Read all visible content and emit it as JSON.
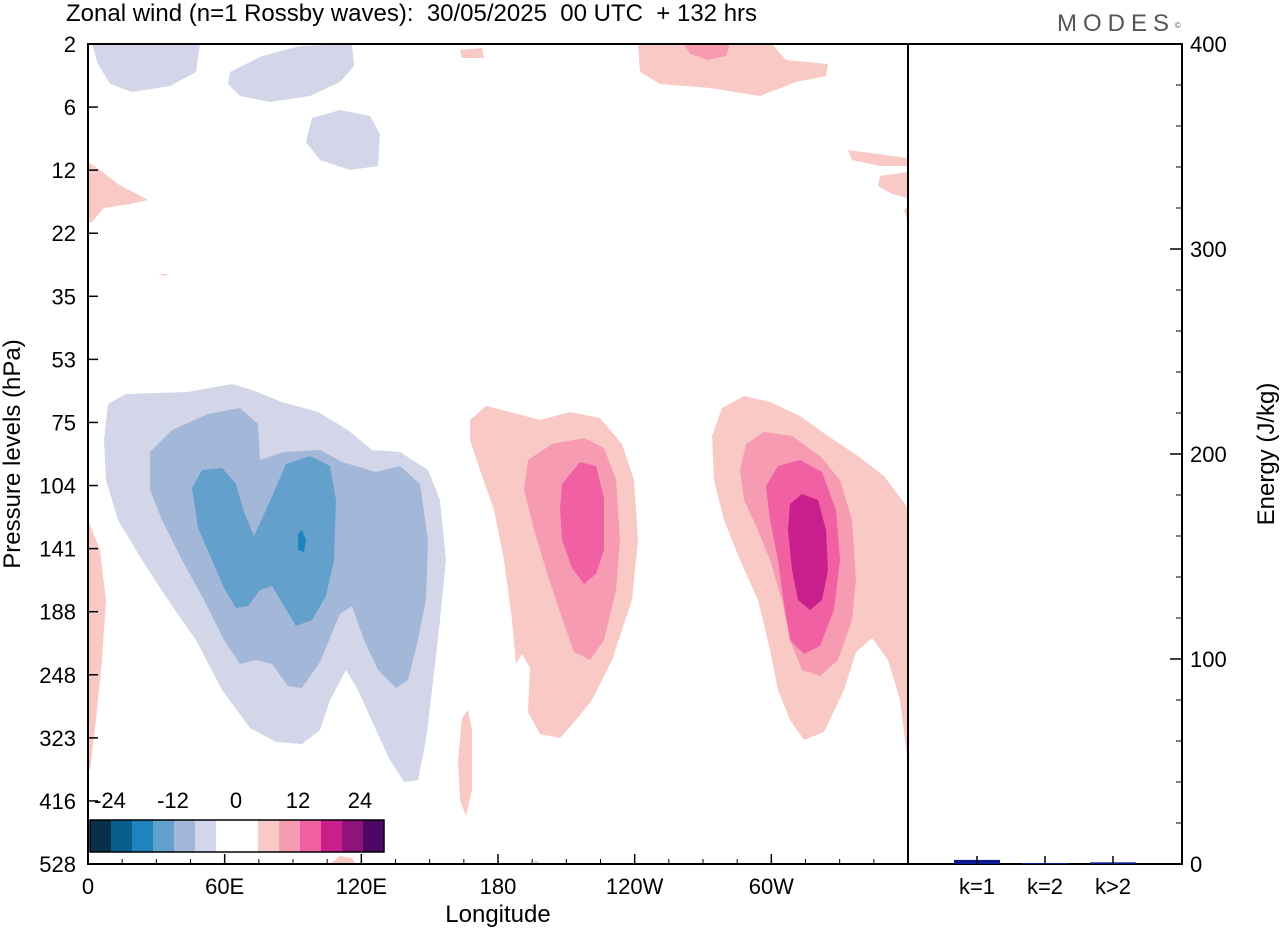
{
  "title": "Zonal wind (n=1 Rossby waves):  30/05/2025  00 UTC  + 132 hrs",
  "logo": "MODES",
  "logo_mark": "©",
  "chart_data": [
    {
      "type": "heatmap",
      "xlabel": "Longitude",
      "ylabel": "Pressure levels (hPa)",
      "x_ticks": [
        "0",
        "60E",
        "120E",
        "180",
        "120W",
        "60W"
      ],
      "y_ticks": [
        "2",
        "6",
        "12",
        "22",
        "35",
        "53",
        "75",
        "104",
        "141",
        "188",
        "248",
        "323",
        "416",
        "528"
      ],
      "colorbar": {
        "labels": [
          "-24",
          "-12",
          "0",
          "12",
          "24"
        ],
        "colors": [
          "#08304d",
          "#0a5e8e",
          "#1e84bf",
          "#63a0cc",
          "#a3b8d8",
          "#d3d5e8",
          "#ffffff",
          "#ffffff",
          "#f9c9c5",
          "#f79bb3",
          "#f060a2",
          "#c91f8d",
          "#8f137b",
          "#4f0766"
        ]
      },
      "features": [
        {
          "sign": "negative",
          "peak": -18,
          "center_lon": "about 95E",
          "center_level": "141"
        },
        {
          "sign": "positive",
          "peak": 12,
          "center_lon": "about 155W",
          "center_level": "141"
        },
        {
          "sign": "positive",
          "peak": 18,
          "center_lon": "about 55W",
          "center_level": "141"
        }
      ]
    },
    {
      "type": "bar",
      "ylabel": "Energy (J/kg)",
      "categories": [
        "k=1",
        "k=2",
        "k>2"
      ],
      "values": [
        2,
        0.5,
        0.8
      ],
      "ylim": [
        0,
        400
      ],
      "y_ticks": [
        "0",
        "100",
        "200",
        "300",
        "400"
      ],
      "bar_color": "#0a1a8c"
    }
  ]
}
